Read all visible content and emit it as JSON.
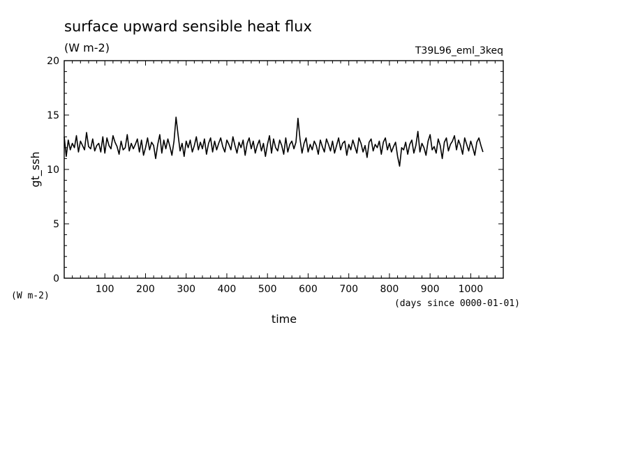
{
  "chart_data": {
    "type": "line",
    "title": "surface upward sensible heat flux",
    "units": "(W m-2)",
    "run_label": "T39L96_eml_3keq",
    "ylabel": "gt_ssh",
    "yunits": "(W m-2)",
    "xlabel": "time",
    "xunits": "(days since 0000-01-01)",
    "xlim": [
      0,
      1080
    ],
    "ylim": [
      0,
      20
    ],
    "x_ticks": [
      100,
      200,
      300,
      400,
      500,
      600,
      700,
      800,
      900,
      1000
    ],
    "y_ticks": [
      0,
      5,
      10,
      15,
      20
    ],
    "grid": false,
    "x_step": 5,
    "series": [
      {
        "values": [
          13.0,
          11.2,
          12.7,
          11.8,
          12.4,
          12.0,
          13.1,
          11.6,
          12.6,
          12.2,
          11.8,
          13.4,
          12.1,
          11.9,
          12.8,
          11.7,
          12.2,
          12.4,
          11.6,
          13.0,
          11.5,
          12.9,
          12.2,
          11.9,
          13.1,
          12.5,
          12.1,
          11.4,
          12.6,
          11.8,
          12.0,
          13.2,
          11.7,
          12.4,
          11.9,
          12.3,
          12.8,
          11.6,
          12.7,
          11.3,
          12.0,
          12.9,
          11.8,
          12.5,
          12.2,
          11.0,
          12.3,
          13.2,
          11.5,
          12.7,
          11.9,
          12.8,
          12.1,
          11.3,
          12.6,
          14.8,
          13.2,
          11.7,
          12.4,
          11.2,
          12.6,
          12.0,
          12.7,
          11.6,
          12.2,
          13.0,
          11.8,
          12.5,
          11.9,
          12.8,
          11.4,
          12.4,
          12.9,
          11.6,
          12.6,
          11.8,
          12.4,
          12.9,
          12.1,
          11.6,
          12.7,
          12.3,
          11.8,
          13.0,
          12.2,
          11.5,
          12.5,
          12.0,
          12.7,
          11.3,
          12.4,
          12.9,
          11.9,
          12.6,
          11.5,
          12.2,
          12.7,
          11.7,
          12.4,
          11.2,
          12.3,
          13.1,
          11.5,
          12.8,
          12.0,
          11.7,
          12.7,
          12.2,
          11.4,
          12.9,
          11.6,
          12.3,
          12.6,
          11.9,
          12.5,
          14.7,
          12.8,
          11.5,
          12.4,
          12.9,
          11.6,
          12.3,
          11.8,
          12.6,
          12.2,
          11.4,
          12.7,
          12.1,
          11.6,
          12.8,
          12.3,
          11.7,
          12.6,
          11.5,
          12.2,
          12.9,
          11.8,
          12.4,
          12.6,
          11.3,
          12.3,
          11.8,
          12.7,
          12.1,
          11.5,
          12.9,
          12.4,
          11.6,
          12.2,
          11.1,
          12.5,
          12.8,
          11.7,
          12.3,
          12.0,
          12.6,
          11.4,
          12.5,
          12.9,
          11.8,
          12.4,
          11.6,
          12.1,
          12.5,
          11.2,
          10.3,
          12.0,
          11.8,
          12.5,
          11.4,
          12.3,
          12.7,
          11.5,
          12.2,
          13.5,
          11.6,
          12.4,
          12.0,
          11.3,
          12.6,
          13.2,
          11.8,
          12.1,
          11.5,
          12.8,
          12.2,
          11.0,
          12.5,
          12.9,
          11.7,
          12.3,
          12.6,
          13.1,
          11.8,
          12.7,
          12.2,
          11.4,
          12.9,
          12.3,
          11.7,
          12.6,
          12.0,
          11.3,
          12.5,
          12.9,
          12.2,
          11.6
        ],
        "color": "#000000"
      }
    ]
  }
}
